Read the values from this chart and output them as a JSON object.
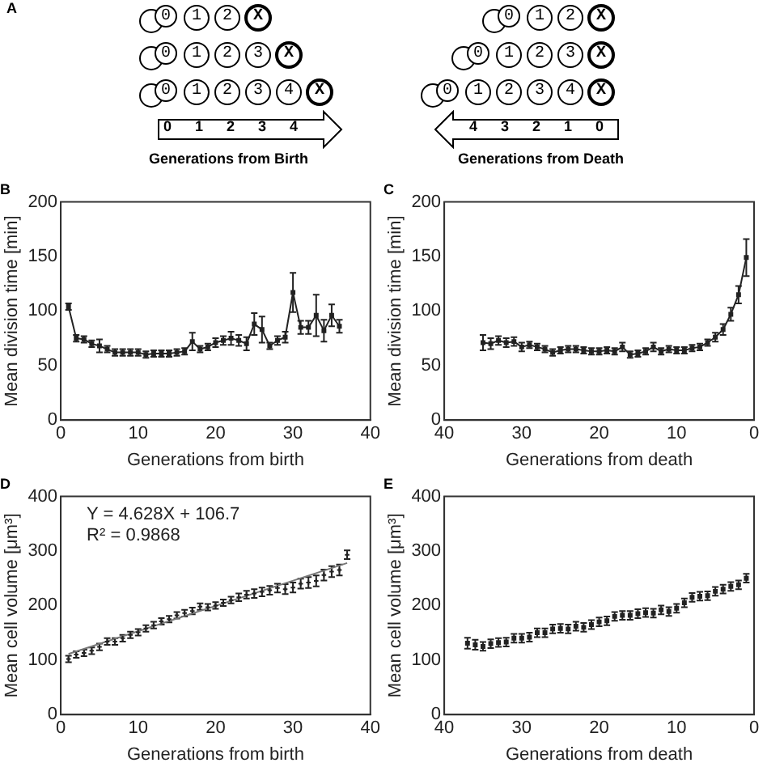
{
  "chart_data": [
    {
      "type": "other",
      "title": "A",
      "annotations": [
        "0 1 2 X",
        "0 1 2 3 X",
        "0 1 2 3 4 X",
        "0 1 2 3 4",
        "Generations from Birth"
      ]
    },
    {
      "type": "other",
      "annotations": [
        "0 1 2 X",
        "0 1 2 3 X",
        "0 1 2 3 4 X",
        "4 3 2 1 0",
        "Generations from Death"
      ]
    },
    {
      "type": "line",
      "title": "B",
      "xlabel": "Generations from birth",
      "ylabel": "Mean division time [min]",
      "xlim": [
        0,
        40
      ],
      "xticks": [
        0,
        10,
        20,
        30,
        40
      ],
      "ylim": [
        0,
        200
      ],
      "yticks": [
        0,
        50,
        100,
        150,
        200
      ],
      "grid": false,
      "legend": false,
      "marker": "square",
      "series": [
        {
          "color": "#222222",
          "x": [
            1,
            2,
            3,
            4,
            5,
            6,
            7,
            8,
            9,
            10,
            11,
            12,
            13,
            14,
            15,
            16,
            17,
            18,
            19,
            20,
            21,
            22,
            23,
            24,
            25,
            26,
            27,
            28,
            29,
            30,
            31,
            32,
            33,
            34,
            35,
            36
          ],
          "values": [
            104,
            75,
            74,
            70,
            68,
            65,
            62,
            62,
            62,
            62,
            60,
            61,
            61,
            61,
            62,
            63,
            72,
            65,
            67,
            71,
            73,
            75,
            73,
            70,
            88,
            83,
            68,
            73,
            76,
            117,
            85,
            85,
            96,
            82,
            96,
            86
          ],
          "errors": [
            3,
            3,
            3,
            3,
            6,
            3,
            3,
            3,
            3,
            3,
            3,
            3,
            3,
            3,
            3,
            3,
            8,
            3,
            3,
            4,
            4,
            6,
            5,
            6,
            10,
            12,
            3,
            4,
            5,
            18,
            6,
            6,
            19,
            10,
            10,
            6
          ]
        }
      ]
    },
    {
      "type": "line",
      "title": "C",
      "xlabel": "Generations from death",
      "ylabel": "Mean division time [min]",
      "xlim": [
        40,
        0
      ],
      "xticks": [
        40,
        30,
        20,
        10,
        0
      ],
      "ylim": [
        0,
        200
      ],
      "yticks": [
        0,
        50,
        100,
        150,
        200
      ],
      "grid": false,
      "legend": false,
      "marker": "square",
      "series": [
        {
          "color": "#222222",
          "x": [
            35,
            34,
            33,
            32,
            31,
            30,
            29,
            28,
            27,
            26,
            25,
            24,
            23,
            22,
            21,
            20,
            19,
            18,
            17,
            16,
            15,
            14,
            13,
            12,
            11,
            10,
            9,
            8,
            7,
            6,
            5,
            4,
            3,
            2,
            1
          ],
          "values": [
            71,
            70,
            73,
            71,
            72,
            67,
            69,
            67,
            65,
            62,
            64,
            65,
            65,
            64,
            63,
            63,
            64,
            63,
            67,
            60,
            61,
            63,
            67,
            63,
            65,
            64,
            64,
            66,
            67,
            71,
            76,
            83,
            97,
            115,
            149
          ],
          "errors": [
            7,
            5,
            4,
            4,
            4,
            4,
            3,
            3,
            3,
            3,
            3,
            3,
            3,
            3,
            3,
            3,
            3,
            3,
            4,
            3,
            3,
            3,
            4,
            3,
            3,
            3,
            3,
            3,
            3,
            3,
            4,
            5,
            6,
            8,
            17
          ]
        }
      ]
    },
    {
      "type": "scatter",
      "title": "D",
      "xlabel": "Generations from birth",
      "ylabel": "Mean cell volume [μm³]",
      "xlim": [
        0,
        40
      ],
      "xticks": [
        0,
        10,
        20,
        30,
        40
      ],
      "ylim": [
        0,
        400
      ],
      "yticks": [
        0,
        100,
        200,
        300,
        400
      ],
      "grid": false,
      "legend": false,
      "marker": "cross",
      "annotations": [
        "Y = 4.628X + 106.7",
        "R² = 0.9868"
      ],
      "series": [
        {
          "color": "#222222",
          "x": [
            1,
            2,
            3,
            4,
            5,
            6,
            7,
            8,
            9,
            10,
            11,
            12,
            13,
            14,
            15,
            16,
            17,
            18,
            19,
            20,
            21,
            22,
            23,
            24,
            25,
            26,
            27,
            28,
            29,
            30,
            31,
            32,
            33,
            34,
            35,
            36,
            37
          ],
          "values": [
            102,
            110,
            113,
            117,
            124,
            134,
            134,
            140,
            146,
            151,
            158,
            164,
            171,
            175,
            182,
            186,
            190,
            198,
            197,
            200,
            205,
            210,
            215,
            220,
            222,
            225,
            228,
            232,
            230,
            233,
            240,
            242,
            245,
            256,
            262,
            265,
            293
          ],
          "errors": [
            6,
            6,
            6,
            6,
            6,
            6,
            6,
            6,
            6,
            6,
            6,
            6,
            6,
            6,
            6,
            6,
            6,
            6,
            6,
            6,
            6,
            6,
            7,
            7,
            8,
            8,
            8,
            8,
            9,
            9,
            9,
            10,
            10,
            10,
            10,
            10,
            8
          ]
        },
        {
          "type": "line",
          "marker": "none",
          "color": "#777777",
          "x": [
            1,
            37
          ],
          "values": [
            111.3,
            277.9
          ]
        }
      ]
    },
    {
      "type": "scatter",
      "title": "E",
      "xlabel": "Generations from death",
      "ylabel": "Mean cell volume [μm³]",
      "xlim": [
        40,
        0
      ],
      "xticks": [
        40,
        30,
        20,
        10,
        0
      ],
      "ylim": [
        0,
        400
      ],
      "yticks": [
        0,
        100,
        200,
        300,
        400
      ],
      "grid": false,
      "legend": false,
      "marker": "square",
      "series": [
        {
          "color": "#222222",
          "x": [
            37,
            36,
            35,
            34,
            33,
            32,
            31,
            30,
            29,
            28,
            27,
            26,
            25,
            24,
            23,
            22,
            21,
            20,
            19,
            18,
            17,
            16,
            15,
            14,
            13,
            12,
            11,
            10,
            9,
            8,
            7,
            6,
            5,
            4,
            3,
            2,
            1
          ],
          "values": [
            131,
            128,
            125,
            130,
            132,
            133,
            140,
            140,
            142,
            150,
            150,
            157,
            158,
            157,
            162,
            160,
            165,
            170,
            172,
            180,
            182,
            182,
            185,
            187,
            186,
            192,
            189,
            195,
            205,
            215,
            217,
            218,
            226,
            230,
            235,
            238,
            250
          ],
          "errors": [
            10,
            9,
            8,
            8,
            8,
            8,
            8,
            8,
            8,
            8,
            8,
            8,
            8,
            8,
            8,
            8,
            8,
            8,
            8,
            8,
            8,
            8,
            8,
            8,
            8,
            8,
            8,
            8,
            8,
            8,
            8,
            8,
            8,
            8,
            8,
            8,
            8
          ]
        }
      ]
    }
  ]
}
